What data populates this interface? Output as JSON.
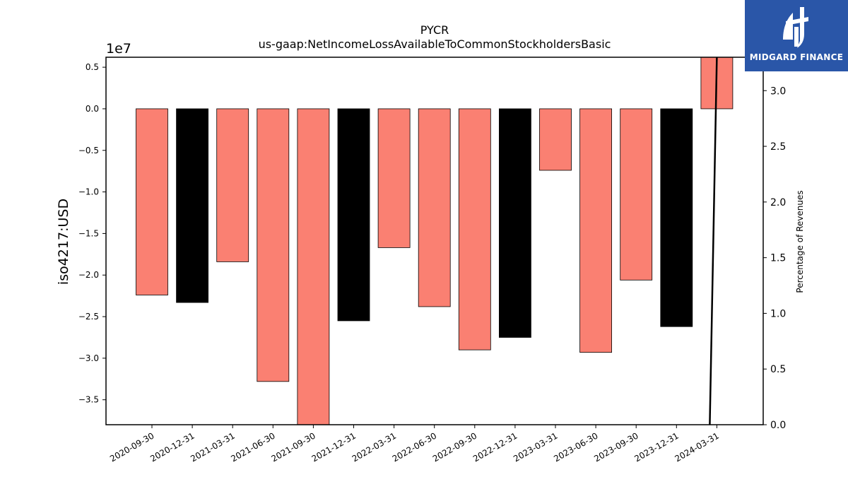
{
  "logo": {
    "text": "MIDGARD FINANCE",
    "icon": "midgard-logo-icon",
    "bg_color": "#2a56a8"
  },
  "chart_data": {
    "type": "bar",
    "title": "PYCR",
    "subtitle": "us-gaap:NetIncomeLossAvailableToCommonStockholdersBasic",
    "ylabel": "iso4217:USD",
    "y_offset_label": "1e7",
    "y2label": "Percentage of Revenues",
    "categories": [
      "2020-09-30",
      "2020-12-31",
      "2021-03-31",
      "2021-06-30",
      "2021-09-30",
      "2021-12-31",
      "2022-03-31",
      "2022-06-30",
      "2022-09-30",
      "2022-12-31",
      "2023-03-31",
      "2023-06-30",
      "2023-09-30",
      "2023-12-31",
      "2024-03-31"
    ],
    "values": [
      -22400000,
      -23300000,
      -18400000,
      -32800000,
      -38000000,
      -25500000,
      -16700000,
      -23800000,
      -29000000,
      -27500000,
      -7400000,
      -29300000,
      -20600000,
      -26200000,
      6200000
    ],
    "bar_colors": [
      "#fa8072",
      "#000000",
      "#fa8072",
      "#fa8072",
      "#fa8072",
      "#000000",
      "#fa8072",
      "#fa8072",
      "#fa8072",
      "#000000",
      "#fa8072",
      "#fa8072",
      "#fa8072",
      "#000000",
      "#fa8072"
    ],
    "ylim": [
      -38000000,
      6200000
    ],
    "yticks": [
      5000000,
      0,
      -5000000,
      -10000000,
      -15000000,
      -20000000,
      -25000000,
      -30000000,
      -35000000
    ],
    "ytick_labels": [
      "0.5",
      "0.0",
      "−0.5",
      "−1.0",
      "−1.5",
      "−2.0",
      "−2.5",
      "−3.0",
      "−3.5"
    ],
    "y2lim": [
      0,
      3.3
    ],
    "y2ticks": [
      0,
      0.5,
      1.0,
      1.5,
      2.0,
      2.5,
      3.0
    ],
    "y2tick_labels": [
      "0.0",
      "0.5",
      "1.0",
      "1.5",
      "2.0",
      "2.5",
      "3.0"
    ],
    "line": {
      "color": "#000000",
      "points": [
        [
          "2024-03-31 (start)",
          0
        ],
        [
          "2024-03-31",
          3.3
        ]
      ]
    },
    "grid": false
  }
}
